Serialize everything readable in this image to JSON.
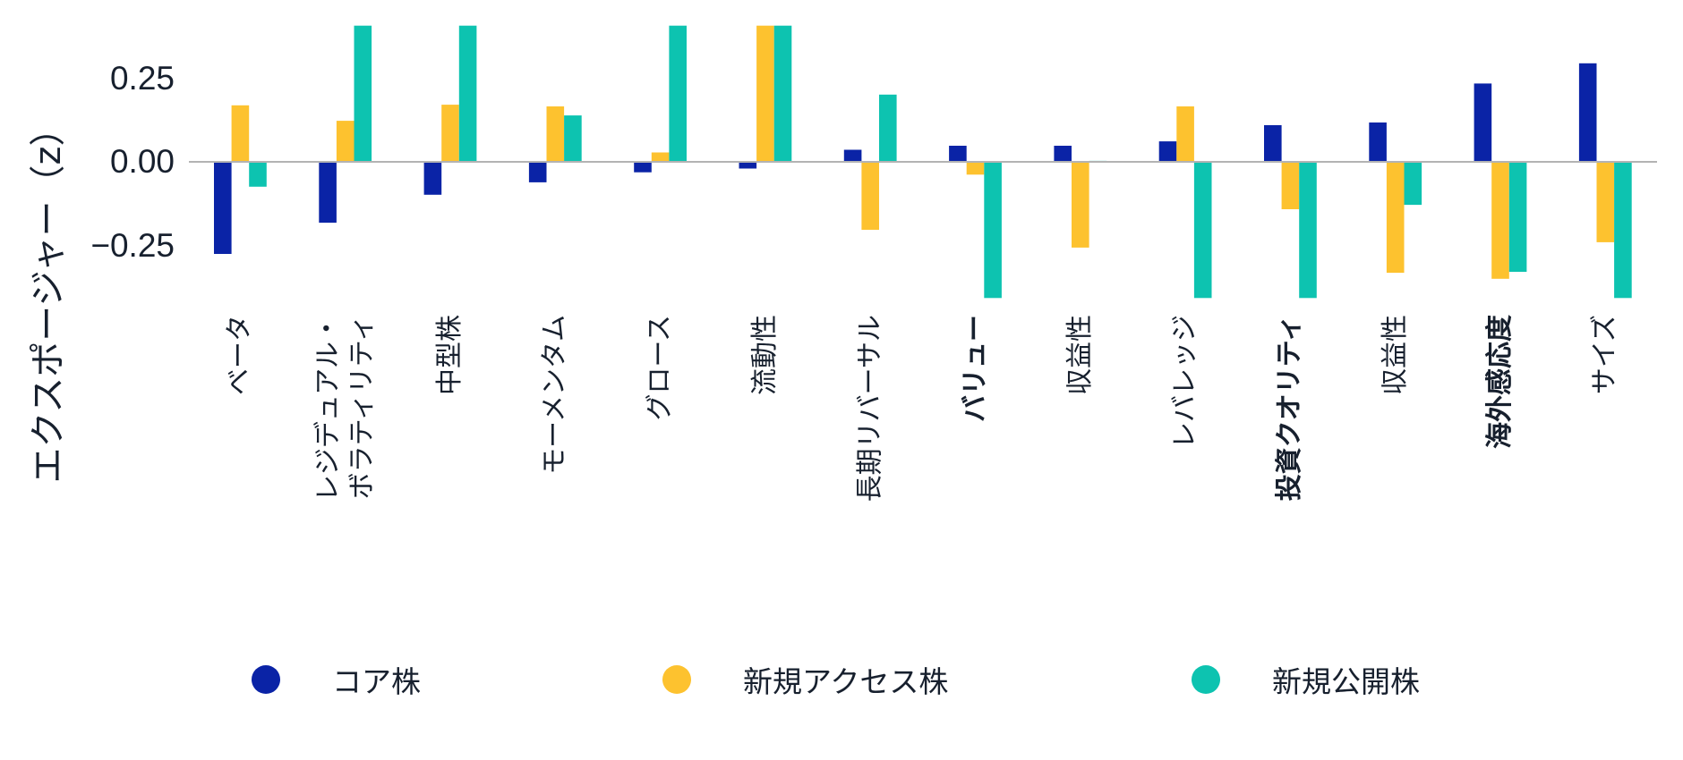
{
  "chart_data": {
    "type": "bar",
    "title": "",
    "xlabel": "",
    "ylabel": "エクスポージャー（z）",
    "ylim": [
      -0.405,
      0.405
    ],
    "yticks": [
      0.25,
      0.0,
      -0.25
    ],
    "ytick_labels": [
      "0.25",
      "0.00",
      "−0.25"
    ],
    "grid": false,
    "zero_line": true,
    "legend_position": "bottom",
    "categories": [
      "ベータ",
      "レジデュアル・\nボラティリティ",
      "中型株",
      "モーメンタム",
      "グロース",
      "流動性",
      "長期リバーサル",
      "バリュー",
      "収益性",
      "レバレッジ",
      "投資クオリティ",
      "収益性",
      "海外感応度",
      "サイズ"
    ],
    "bold_categories": [
      false,
      false,
      false,
      false,
      false,
      false,
      false,
      true,
      false,
      false,
      true,
      false,
      true,
      false
    ],
    "series": [
      {
        "name": "コア株",
        "color": "#0a23a6",
        "values": [
          -0.274,
          -0.181,
          -0.098,
          -0.061,
          -0.031,
          -0.02,
          0.036,
          0.048,
          0.048,
          0.061,
          0.109,
          0.117,
          0.233,
          0.293
        ]
      },
      {
        "name": "新規アクセス株",
        "color": "#fdc22f",
        "values": [
          0.168,
          0.122,
          0.17,
          0.165,
          0.028,
          0.405,
          -0.202,
          -0.038,
          -0.255,
          0.165,
          -0.141,
          -0.33,
          -0.348,
          -0.239
        ]
      },
      {
        "name": "新規公開株",
        "color": "#0dc3b0",
        "values": [
          -0.074,
          0.405,
          0.405,
          0.138,
          0.405,
          0.405,
          0.2,
          -0.405,
          0.003,
          -0.405,
          -0.405,
          -0.128,
          -0.327,
          -0.405
        ]
      }
    ]
  },
  "colors": {
    "zero_line": "#b3b3b3",
    "text": "#17202e",
    "background": "#ffffff"
  }
}
